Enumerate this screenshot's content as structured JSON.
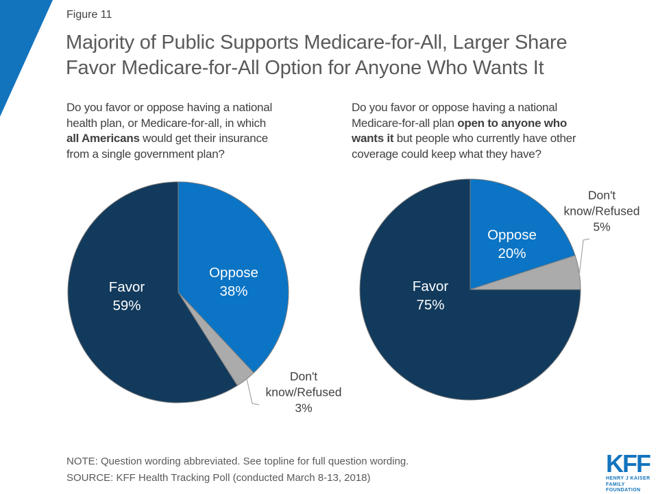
{
  "figure_label": "Figure 11",
  "title": {
    "line1": "Majority of Public Supports Medicare-for-All, Larger Share",
    "line2": "Favor Medicare-for-All Option for Anyone Who Wants It"
  },
  "chart_data": [
    {
      "type": "pie",
      "position": "left",
      "question_lines": [
        "Do you favor or oppose having a national",
        "health plan, or Medicare-for-all, in which",
        "**all Americans** would get their insurance",
        "from a single government plan?"
      ],
      "start_angle": "12 o'clock, clockwise",
      "slices": [
        {
          "label": "Oppose",
          "value": 38,
          "value_label": "38%",
          "color": "#0B74C4",
          "text_color": "#ffffff"
        },
        {
          "label": "Don't know/Refused",
          "value": 3,
          "value_label": "3%",
          "color": "#ABABAB",
          "outside_lines": [
            "Don't",
            "know/Refused",
            "3%"
          ]
        },
        {
          "label": "Favor",
          "value": 59,
          "value_label": "59%",
          "color": "#123A5C",
          "text_color": "#ffffff"
        }
      ]
    },
    {
      "type": "pie",
      "position": "right",
      "question_lines": [
        "Do you favor or oppose having a national",
        "Medicare-for-all plan **open to anyone who**",
        "**wants it** but people who currently have other",
        "coverage could keep what they have?"
      ],
      "start_angle": "12 o'clock, clockwise",
      "slices": [
        {
          "label": "Oppose",
          "value": 20,
          "value_label": "20%",
          "color": "#0B74C4",
          "text_color": "#ffffff"
        },
        {
          "label": "Don't know/Refused",
          "value": 5,
          "value_label": "5%",
          "color": "#ABABAB",
          "outside_lines": [
            "Don't",
            "know/Refused",
            "5%"
          ]
        },
        {
          "label": "Favor",
          "value": 75,
          "value_label": "75%",
          "color": "#123A5C",
          "text_color": "#ffffff"
        }
      ]
    }
  ],
  "footer": {
    "note": "NOTE: Question wording abbreviated. See topline for full question wording.",
    "source": "SOURCE: KFF Health Tracking Poll (conducted March 8-13, 2018)"
  },
  "logo": {
    "kff": "KFF",
    "sub1": "HENRY J KAISER",
    "sub2": "FAMILY FOUNDATION"
  },
  "colors": {
    "accent_blue": "#0B74C4",
    "navy": "#123A5C",
    "gray_slice": "#ABABAB",
    "slice_outline": "#7F7F7F",
    "leader_line": "#A6A6A6",
    "corner_triangle": "#1374BE",
    "title_text": "#595959",
    "body_text": "#3f3f3f",
    "logo_blue": "#1274BD"
  }
}
